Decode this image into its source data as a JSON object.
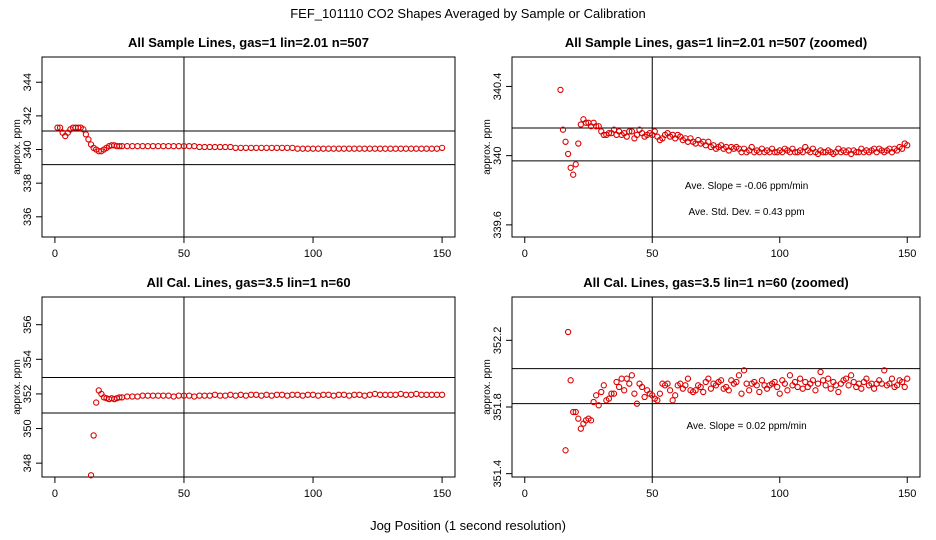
{
  "main_title": "FEF_101110  CO2 Shapes Averaged by Sample or Calibration",
  "xlabel": "Jog Position (1 second resolution)",
  "colors": {
    "points": "#dd0000",
    "axes": "#000000"
  },
  "chart_data": [
    {
      "type": "scatter",
      "title": "All Sample Lines, gas=1 lin=2.01 n=507",
      "ylabel": "approx. ppm",
      "xlim": [
        -5,
        155
      ],
      "ylim": [
        334.8,
        345.5
      ],
      "xticks": [
        0,
        50,
        100,
        150
      ],
      "yticks": [
        336,
        338,
        340,
        342,
        344
      ],
      "vline": 50,
      "hlines": [
        339.1,
        341.1
      ],
      "annotations": [],
      "series": [
        {
          "x": [
            1,
            2,
            3,
            4,
            5,
            6,
            7,
            8,
            9,
            10,
            11,
            12,
            13,
            14,
            15,
            16,
            17,
            18,
            19,
            20,
            21,
            22,
            23,
            24,
            25,
            26,
            28,
            30,
            32,
            34,
            36,
            38,
            40,
            42,
            44,
            46,
            48,
            50,
            52,
            54,
            56,
            58,
            60,
            62,
            64,
            66,
            68,
            70,
            72,
            74,
            76,
            78,
            80,
            82,
            84,
            86,
            88,
            90,
            92,
            94,
            96,
            98,
            100,
            102,
            104,
            106,
            108,
            110,
            112,
            114,
            116,
            118,
            120,
            122,
            124,
            126,
            128,
            130,
            132,
            134,
            136,
            138,
            140,
            142,
            144,
            146,
            148,
            150
          ],
          "y": [
            341.3,
            341.3,
            341.0,
            340.8,
            341.0,
            341.2,
            341.3,
            341.3,
            341.3,
            341.3,
            341.2,
            340.9,
            340.6,
            340.3,
            340.1,
            340.0,
            339.9,
            339.9,
            340.0,
            340.1,
            340.2,
            340.25,
            340.25,
            340.2,
            340.2,
            340.2,
            340.2,
            340.2,
            340.2,
            340.2,
            340.2,
            340.2,
            340.2,
            340.2,
            340.2,
            340.2,
            340.2,
            340.2,
            340.2,
            340.2,
            340.15,
            340.15,
            340.15,
            340.15,
            340.15,
            340.15,
            340.15,
            340.1,
            340.1,
            340.1,
            340.1,
            340.1,
            340.1,
            340.1,
            340.1,
            340.1,
            340.1,
            340.1,
            340.1,
            340.05,
            340.05,
            340.05,
            340.05,
            340.05,
            340.05,
            340.05,
            340.05,
            340.05,
            340.05,
            340.05,
            340.05,
            340.05,
            340.05,
            340.05,
            340.05,
            340.05,
            340.05,
            340.05,
            340.05,
            340.05,
            340.05,
            340.05,
            340.05,
            340.05,
            340.05,
            340.05,
            340.05,
            340.1
          ]
        }
      ]
    },
    {
      "type": "scatter",
      "title": "All Sample Lines, gas=1 lin=2.01 n=507 (zoomed)",
      "ylabel": "approx. ppm",
      "xlim": [
        -5,
        155
      ],
      "ylim": [
        339.53,
        340.57
      ],
      "xticks": [
        0,
        50,
        100,
        150
      ],
      "yticks": [
        339.6,
        340.0,
        340.4
      ],
      "vline": 50,
      "hlines": [
        340.16,
        339.97
      ],
      "annotations": [
        "Ave. Slope =  -0.06  ppm/min",
        "Ave. Std. Dev. =  0.43  ppm"
      ],
      "series": [
        {
          "x": [
            14,
            15,
            16,
            17,
            18,
            19,
            20,
            21,
            22,
            23,
            24,
            25,
            26,
            27,
            28,
            29,
            30,
            31,
            32,
            33,
            34,
            35,
            36,
            37,
            38,
            39,
            40,
            41,
            42,
            43,
            44,
            45,
            46,
            47,
            48,
            49,
            50,
            51,
            52,
            53,
            54,
            55,
            56,
            57,
            58,
            59,
            60,
            61,
            62,
            63,
            64,
            65,
            66,
            67,
            68,
            69,
            70,
            71,
            72,
            73,
            74,
            75,
            76,
            77,
            78,
            79,
            80,
            81,
            82,
            83,
            84,
            85,
            86,
            87,
            88,
            89,
            90,
            91,
            92,
            93,
            94,
            95,
            96,
            97,
            98,
            99,
            100,
            101,
            102,
            103,
            104,
            105,
            106,
            107,
            108,
            109,
            110,
            111,
            112,
            113,
            114,
            115,
            116,
            117,
            118,
            119,
            120,
            121,
            122,
            123,
            124,
            125,
            126,
            127,
            128,
            129,
            130,
            131,
            132,
            133,
            134,
            135,
            136,
            137,
            138,
            139,
            140,
            141,
            142,
            143,
            144,
            145,
            146,
            147,
            148,
            149,
            150
          ],
          "y": [
            340.38,
            340.15,
            340.08,
            340.01,
            339.93,
            339.89,
            339.95,
            340.07,
            340.18,
            340.21,
            340.19,
            340.19,
            340.17,
            340.19,
            340.17,
            340.17,
            340.14,
            340.12,
            340.12,
            340.13,
            340.13,
            340.15,
            340.12,
            340.14,
            340.12,
            340.13,
            340.11,
            340.14,
            340.14,
            340.1,
            340.12,
            340.15,
            340.13,
            340.11,
            340.12,
            340.13,
            340.12,
            340.14,
            340.11,
            340.09,
            340.1,
            340.12,
            340.13,
            340.11,
            340.12,
            340.1,
            340.12,
            340.11,
            340.09,
            340.1,
            340.08,
            340.1,
            340.08,
            340.07,
            340.09,
            340.07,
            340.08,
            340.06,
            340.08,
            340.05,
            340.06,
            340.04,
            340.05,
            340.06,
            340.04,
            340.05,
            340.03,
            340.05,
            340.04,
            340.05,
            340.04,
            340.02,
            340.04,
            340.02,
            340.03,
            340.05,
            340.02,
            340.03,
            340.02,
            340.04,
            340.02,
            340.03,
            340.02,
            340.04,
            340.02,
            340.02,
            340.03,
            340.02,
            340.04,
            340.03,
            340.02,
            340.04,
            340.02,
            340.02,
            340.03,
            340.02,
            340.05,
            340.03,
            340.02,
            340.04,
            340.02,
            340.01,
            340.03,
            340.02,
            340.02,
            340.03,
            340.02,
            340.01,
            340.02,
            340.04,
            340.02,
            340.03,
            340.02,
            340.03,
            340.01,
            340.03,
            340.02,
            340.02,
            340.04,
            340.02,
            340.03,
            340.02,
            340.03,
            340.04,
            340.02,
            340.04,
            340.03,
            340.02,
            340.03,
            340.04,
            340.02,
            340.04,
            340.03,
            340.05,
            340.04,
            340.07,
            340.06
          ]
        }
      ]
    },
    {
      "type": "scatter",
      "title": "All Cal. Lines, gas=3.5 lin=1 n=60",
      "ylabel": "approx. ppm",
      "xlim": [
        -5,
        155
      ],
      "ylim": [
        347.2,
        357.6
      ],
      "xticks": [
        0,
        50,
        100,
        150
      ],
      "yticks": [
        348,
        350,
        352,
        354,
        356
      ],
      "vline": 50,
      "hlines": [
        352.95,
        350.9
      ],
      "annotations": [],
      "series": [
        {
          "x": [
            14,
            15,
            16,
            17,
            18,
            19,
            20,
            21,
            22,
            23,
            24,
            25,
            26,
            28,
            30,
            32,
            34,
            36,
            38,
            40,
            42,
            44,
            46,
            48,
            50,
            52,
            54,
            56,
            58,
            60,
            62,
            64,
            66,
            68,
            70,
            72,
            74,
            76,
            78,
            80,
            82,
            84,
            86,
            88,
            90,
            92,
            94,
            96,
            98,
            100,
            102,
            104,
            106,
            108,
            110,
            112,
            114,
            116,
            118,
            120,
            122,
            124,
            126,
            128,
            130,
            132,
            134,
            136,
            138,
            140,
            142,
            144,
            146,
            148,
            150
          ],
          "y": [
            347.3,
            349.6,
            351.5,
            352.2,
            352.0,
            351.8,
            351.75,
            351.7,
            351.75,
            351.7,
            351.75,
            351.8,
            351.8,
            351.85,
            351.85,
            351.85,
            351.9,
            351.9,
            351.9,
            351.9,
            351.9,
            351.9,
            351.85,
            351.9,
            351.9,
            351.9,
            351.85,
            351.9,
            351.9,
            351.9,
            351.95,
            351.9,
            351.9,
            351.95,
            351.9,
            351.95,
            351.9,
            351.95,
            351.95,
            351.9,
            351.95,
            351.9,
            351.95,
            351.95,
            351.9,
            351.95,
            351.95,
            351.9,
            351.95,
            351.95,
            351.9,
            351.95,
            351.95,
            351.9,
            351.95,
            351.95,
            351.9,
            351.95,
            351.95,
            351.9,
            351.95,
            352.0,
            351.95,
            351.95,
            351.95,
            351.95,
            352.0,
            351.95,
            351.95,
            352.0,
            351.95,
            351.95,
            351.95,
            351.95,
            351.95
          ]
        }
      ]
    },
    {
      "type": "scatter",
      "title": "All Cal. Lines, gas=3.5 lin=1 n=60 (zoomed)",
      "ylabel": "approx. ppm",
      "xlim": [
        -5,
        155
      ],
      "ylim": [
        351.38,
        352.46
      ],
      "xticks": [
        0,
        50,
        100,
        150
      ],
      "yticks": [
        351.4,
        351.8,
        352.2
      ],
      "vline": 50,
      "hlines": [
        352.03,
        351.82
      ],
      "annotations": [
        "Ave. Slope =  0.02  ppm/min"
      ],
      "series": [
        {
          "x": [
            16,
            17,
            18,
            19,
            20,
            21,
            22,
            23,
            24,
            25,
            26,
            27,
            28,
            29,
            30,
            31,
            32,
            33,
            34,
            35,
            36,
            37,
            38,
            39,
            40,
            41,
            42,
            43,
            44,
            45,
            46,
            47,
            48,
            49,
            50,
            51,
            52,
            53,
            54,
            55,
            56,
            57,
            58,
            59,
            60,
            61,
            62,
            63,
            64,
            65,
            66,
            67,
            68,
            69,
            70,
            71,
            72,
            73,
            74,
            75,
            76,
            77,
            78,
            79,
            80,
            81,
            82,
            83,
            84,
            85,
            86,
            87,
            88,
            89,
            90,
            91,
            92,
            93,
            94,
            95,
            96,
            97,
            98,
            99,
            100,
            101,
            102,
            103,
            104,
            105,
            106,
            107,
            108,
            109,
            110,
            111,
            112,
            113,
            114,
            115,
            116,
            117,
            118,
            119,
            120,
            121,
            122,
            123,
            124,
            125,
            126,
            127,
            128,
            129,
            130,
            131,
            132,
            133,
            134,
            135,
            136,
            137,
            138,
            139,
            140,
            141,
            142,
            143,
            144,
            145,
            146,
            147,
            148,
            149,
            150
          ],
          "y": [
            351.54,
            352.25,
            351.96,
            351.77,
            351.77,
            351.73,
            351.67,
            351.7,
            351.72,
            351.73,
            351.72,
            351.83,
            351.87,
            351.81,
            351.89,
            351.93,
            351.84,
            351.85,
            351.88,
            351.88,
            351.95,
            351.92,
            351.97,
            351.9,
            351.97,
            351.94,
            351.99,
            351.88,
            351.82,
            351.94,
            351.92,
            351.86,
            351.9,
            351.88,
            351.87,
            351.85,
            351.84,
            351.88,
            351.94,
            351.93,
            351.94,
            351.9,
            351.84,
            351.87,
            351.93,
            351.94,
            351.91,
            351.93,
            351.97,
            351.9,
            351.89,
            351.9,
            351.93,
            351.92,
            351.89,
            351.95,
            351.97,
            351.91,
            351.94,
            351.93,
            351.95,
            351.96,
            351.91,
            351.92,
            351.9,
            351.96,
            351.94,
            351.95,
            351.99,
            351.88,
            352.02,
            351.94,
            351.9,
            351.94,
            351.95,
            351.93,
            351.89,
            351.96,
            351.93,
            351.91,
            351.93,
            351.94,
            351.95,
            351.92,
            351.88,
            351.96,
            351.94,
            351.9,
            351.99,
            351.93,
            351.95,
            351.92,
            351.97,
            351.91,
            351.95,
            351.92,
            351.94,
            351.96,
            351.9,
            351.94,
            352.01,
            351.96,
            351.93,
            351.97,
            351.91,
            351.95,
            351.93,
            351.89,
            351.94,
            351.96,
            351.97,
            351.93,
            351.99,
            351.95,
            351.92,
            351.94,
            351.91,
            351.95,
            351.97,
            351.93,
            351.94,
            351.91,
            351.94,
            351.96,
            351.94,
            352.02,
            351.93,
            351.94,
            351.97,
            351.92,
            351.93,
            351.96,
            351.95,
            351.92,
            351.97
          ]
        }
      ]
    }
  ]
}
